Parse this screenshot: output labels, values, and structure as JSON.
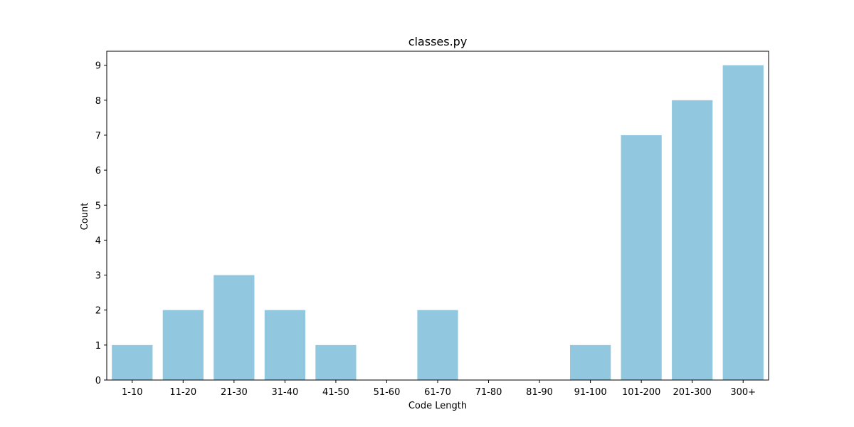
{
  "chart_data": {
    "type": "bar",
    "title": "classes.py",
    "xlabel": "Code Length",
    "ylabel": "Count",
    "categories": [
      "1-10",
      "11-20",
      "21-30",
      "31-40",
      "41-50",
      "51-60",
      "61-70",
      "71-80",
      "81-90",
      "91-100",
      "101-200",
      "201-300",
      "300+"
    ],
    "values": [
      1,
      2,
      3,
      2,
      1,
      0,
      2,
      0,
      0,
      1,
      7,
      8,
      9
    ],
    "ylim": [
      0,
      9.4
    ],
    "yticks": [
      0,
      1,
      2,
      3,
      4,
      5,
      6,
      7,
      8,
      9
    ],
    "grid": false,
    "bar_color": "#92c8df"
  }
}
